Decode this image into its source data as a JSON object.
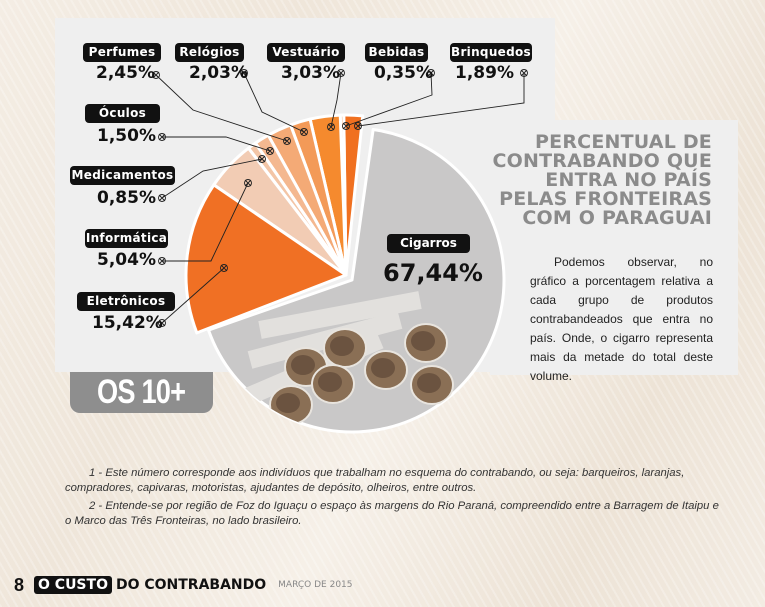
{
  "chart_data": {
    "type": "pie",
    "title": "PERCENTUAL DE CONTRABANDO QUE ENTRA NO PAÍS PELAS FRONTEIRAS COM O PARAGUAI",
    "unit": "%",
    "slices": [
      {
        "label": "Brinquedos",
        "value": 1.89,
        "display": "1,89%",
        "color": "#f07020"
      },
      {
        "label": "Bebidas",
        "value": 0.35,
        "display": "0,35%",
        "color": "#f6a060"
      },
      {
        "label": "Vestuário",
        "value": 3.03,
        "display": "3,03%",
        "color": "#f58a2e"
      },
      {
        "label": "Relógios",
        "value": 2.03,
        "display": "2,03%",
        "color": "#f39a58"
      },
      {
        "label": "Perfumes",
        "value": 2.45,
        "display": "2,45%",
        "color": "#f4aa76"
      },
      {
        "label": "Óculos",
        "value": 1.5,
        "display": "1,50%",
        "color": "#f4b890"
      },
      {
        "label": "Medicamentos",
        "value": 0.85,
        "display": "0,85%",
        "color": "#f3c5a6"
      },
      {
        "label": "Informática",
        "value": 5.04,
        "display": "5,04%",
        "color": "#f2ccb4"
      },
      {
        "label": "Eletrônicos",
        "value": 15.42,
        "display": "15,42%",
        "color": "#f07024"
      },
      {
        "label": "Cigarros",
        "value": 67.44,
        "display": "67,44%",
        "color": "#c9c8c8"
      }
    ]
  },
  "badge": "OS 10+",
  "side": {
    "title_lines": [
      "PERCENTUAL DE",
      "CONTRABANDO QUE",
      "ENTRA NO PAÍS",
      "PELAS FRONTEIRAS",
      "COM O PARAGUAI"
    ],
    "body": "Podemos observar, no gráfico a porcentagem relativa a cada grupo de produtos contrabandeados que entra no país. Onde, o cigarro representa mais da metade do total deste volume."
  },
  "notes": [
    "1 - Este número corresponde aos indivíduos que trabalham no esquema do contrabando, ou seja: barqueiros, laranjas, compradores, capivaras, motoristas, ajudantes de depósito, olheiros, entre outros.",
    "2 - Entende-se por região de Foz do Iguaçu o espaço às margens do Rio Paraná, compreendido entre a Barragem de Itaipu e o Marco das Três Fronteiras, no lado brasileiro."
  ],
  "footer": {
    "page": "8",
    "brand_highlight": "O CUSTO",
    "brand_rest": "DO CONTRABANDO",
    "date": "MARÇO DE 2015"
  }
}
